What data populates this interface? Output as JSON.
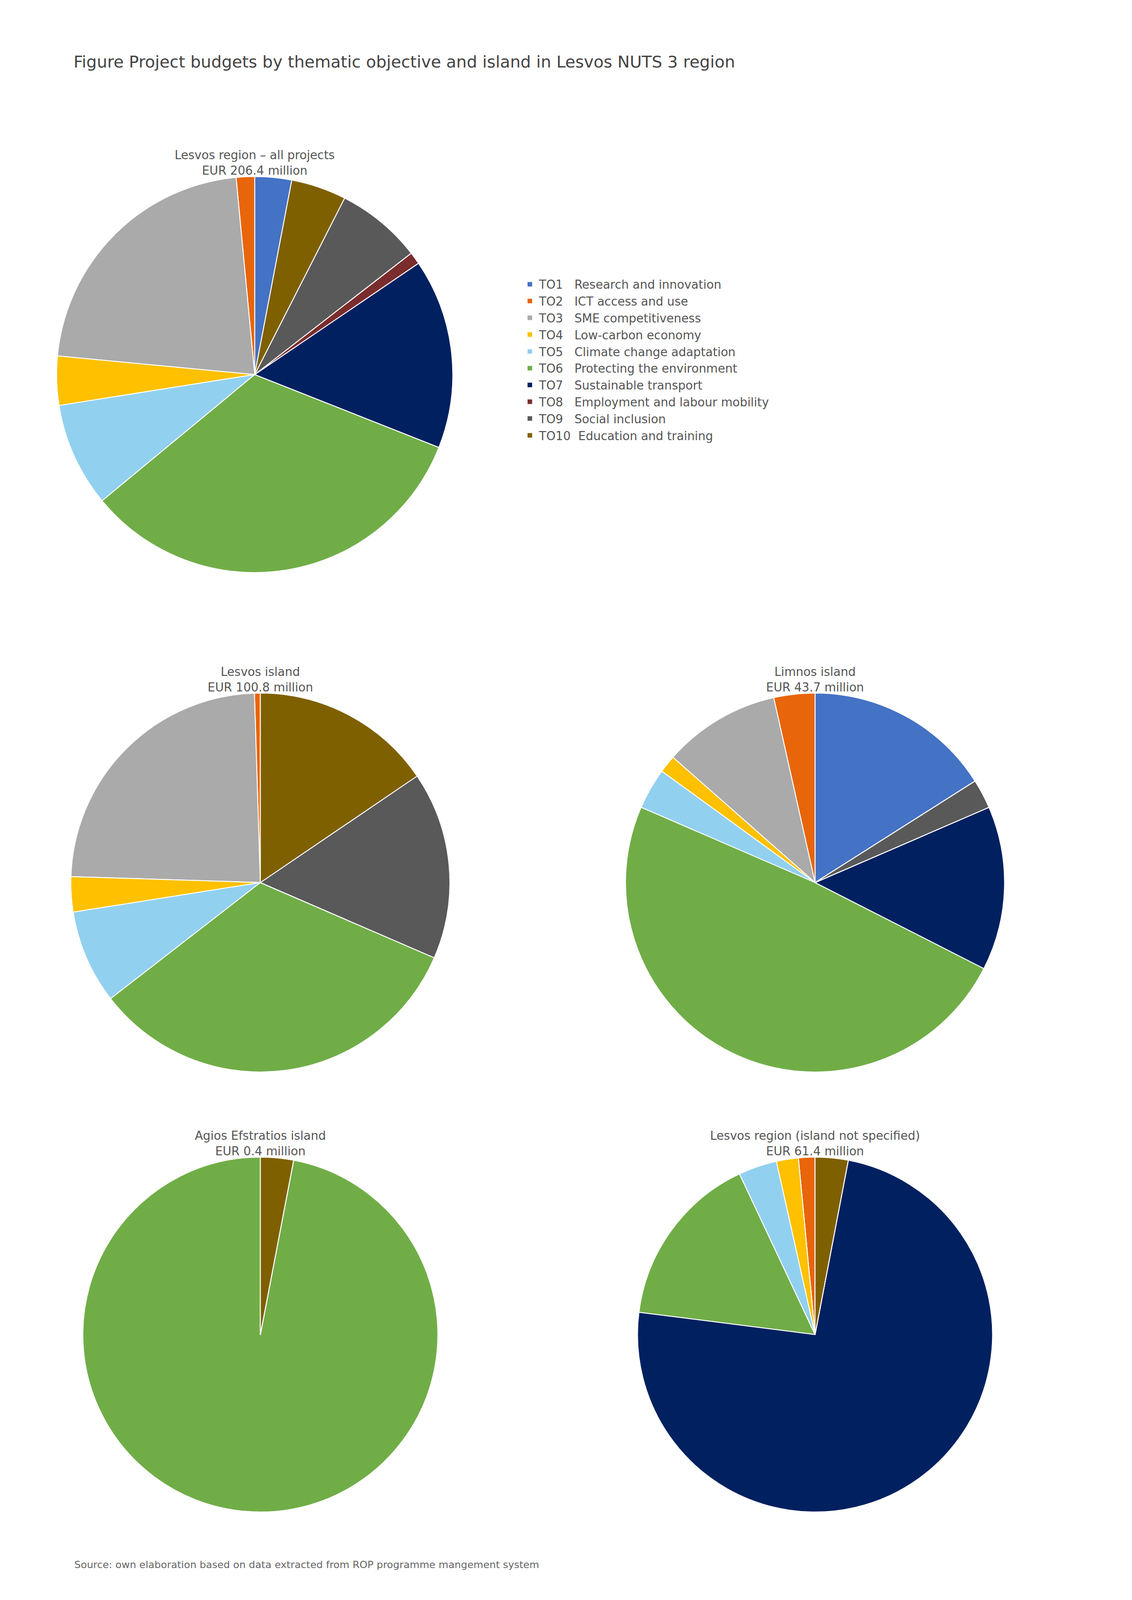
{
  "title": "Figure Project budgets by thematic objective and island in Lesvos NUTS 3 region",
  "annotations": [
    "Source: own elaboration based on data extracted from ROP programme mangement system"
  ],
  "legend": "right",
  "chart_data": [
    {
      "type": "pie",
      "title": [
        "Lesvos region – all projects",
        "EUR 206.4 million"
      ],
      "categories": [
        "TO1   Research and innovation",
        "TO2   ICT access and use",
        "TO3   SME competitiveness",
        "TO4   Low-carbon economy",
        "TO5   Climate change adaptation",
        "TO6   Protecting the environment",
        "TO7   Sustainable transport",
        "TO8   Employment and labour mobility",
        "TO9   Social inclusion",
        "TO10  Education and training"
      ],
      "values": [
        3.0,
        1.5,
        22.0,
        4.0,
        8.5,
        33.0,
        15.5,
        1.0,
        7.0,
        4.5
      ],
      "colors": [
        "#4472C4",
        "#E8650A",
        "#AAAAAA",
        "#FFC000",
        "#92D0F0",
        "#70AD47",
        "#002060",
        "#7B2C2C",
        "#595959",
        "#7F6000"
      ]
    },
    {
      "type": "pie",
      "title": [
        "Lesvos island",
        "EUR 100.8 million"
      ],
      "categories": [
        "TO1   Research and innovation",
        "TO2   ICT access and use",
        "TO3   SME competitiveness",
        "TO4   Low-carbon economy",
        "TO5   Climate change adaptation",
        "TO6   Protecting the environment",
        "TO7   Sustainable transport",
        "TO8   Employment and labour mobility",
        "TO9   Social inclusion",
        "TO10  Education and training"
      ],
      "values": [
        0.0,
        0.5,
        24.0,
        3.0,
        8.0,
        33.0,
        0.0,
        0.0,
        16.0,
        15.5
      ],
      "colors": [
        "#4472C4",
        "#E8650A",
        "#AAAAAA",
        "#FFC000",
        "#92D0F0",
        "#70AD47",
        "#002060",
        "#7B2C2C",
        "#595959",
        "#7F6000"
      ]
    },
    {
      "type": "pie",
      "title": [
        "Limnos island",
        "EUR 43.7 million"
      ],
      "categories": [
        "TO1   Research and innovation",
        "TO2   ICT access and use",
        "TO3   SME competitiveness",
        "TO4   Low-carbon economy",
        "TO5   Climate change adaptation",
        "TO6   Protecting the environment",
        "TO7   Sustainable transport",
        "TO8   Employment and labour mobility",
        "TO9   Social inclusion",
        "TO10  Education and training"
      ],
      "values": [
        16.0,
        3.5,
        10.0,
        1.5,
        3.5,
        49.0,
        14.0,
        0.0,
        2.5,
        0.0
      ],
      "colors": [
        "#4472C4",
        "#E8650A",
        "#AAAAAA",
        "#FFC000",
        "#92D0F0",
        "#70AD47",
        "#002060",
        "#7B2C2C",
        "#595959",
        "#7F6000"
      ]
    },
    {
      "type": "pie",
      "title": [
        "Agios Efstratios island",
        "EUR 0.4 million"
      ],
      "categories": [
        "TO1   Research and innovation",
        "TO2   ICT access and use",
        "TO3   SME competitiveness",
        "TO4   Low-carbon economy",
        "TO5   Climate change adaptation",
        "TO6   Protecting the environment",
        "TO7   Sustainable transport",
        "TO8   Employment and labour mobility",
        "TO9   Social inclusion",
        "TO10  Education and training"
      ],
      "values": [
        0.0,
        0.0,
        0.0,
        0.0,
        0.0,
        97.0,
        0.0,
        0.0,
        0.0,
        3.0
      ],
      "colors": [
        "#4472C4",
        "#E8650A",
        "#AAAAAA",
        "#FFC000",
        "#92D0F0",
        "#70AD47",
        "#002060",
        "#7B2C2C",
        "#595959",
        "#7F6000"
      ]
    },
    {
      "type": "pie",
      "title": [
        "Lesvos region (island not specified)",
        "EUR 61.4 million"
      ],
      "categories": [
        "TO1   Research and innovation",
        "TO2   ICT access and use",
        "TO3   SME competitiveness",
        "TO4   Low-carbon economy",
        "TO5   Climate change adaptation",
        "TO6   Protecting the environment",
        "TO7   Sustainable transport",
        "TO8   Employment and labour mobility",
        "TO9   Social inclusion",
        "TO10  Education and training"
      ],
      "values": [
        0.0,
        1.5,
        0.0,
        2.0,
        3.5,
        16.0,
        74.0,
        0.0,
        0.0,
        3.0
      ],
      "colors": [
        "#4472C4",
        "#E8650A",
        "#AAAAAA",
        "#FFC000",
        "#92D0F0",
        "#70AD47",
        "#002060",
        "#7B2C2C",
        "#595959",
        "#7F6000"
      ]
    }
  ]
}
